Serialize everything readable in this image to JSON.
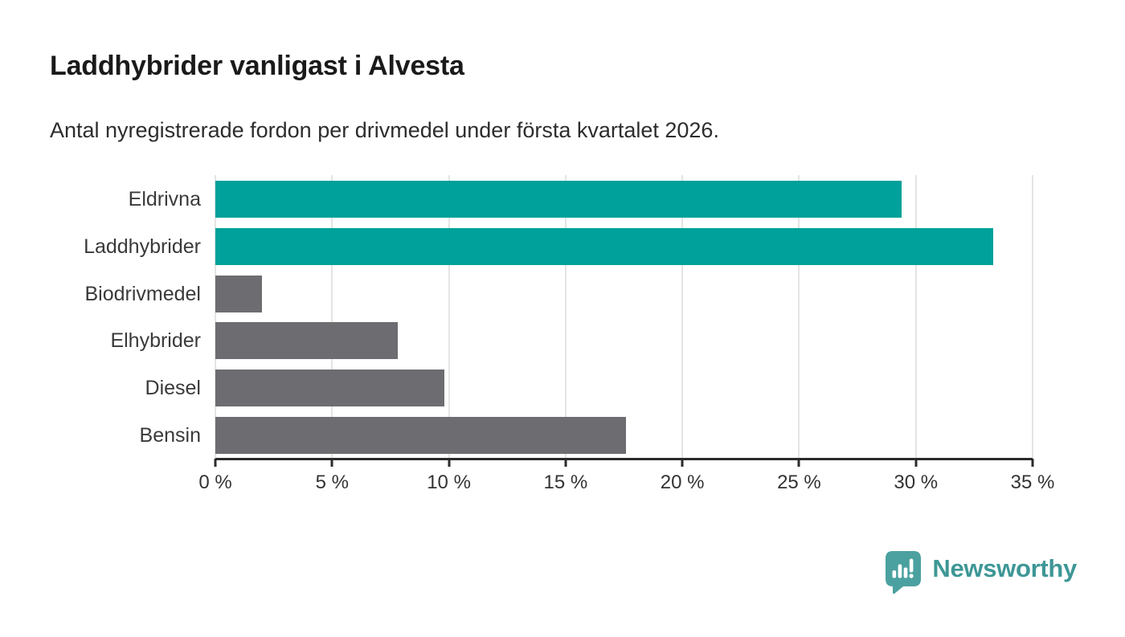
{
  "header": {
    "title": "Laddhybrider vanligast i Alvesta",
    "subtitle": "Antal nyregistrerade fordon per drivmedel under första kvartalet 2026."
  },
  "chart_data": {
    "type": "bar",
    "orientation": "horizontal",
    "title": "Laddhybrider vanligast i Alvesta",
    "subtitle": "Antal nyregistrerade fordon per drivmedel under första kvartalet 2026.",
    "categories": [
      "Eldrivna",
      "Laddhybrider",
      "Biodrivmedel",
      "Elhybrider",
      "Diesel",
      "Bensin"
    ],
    "values": [
      29.4,
      33.3,
      2.0,
      7.8,
      9.8,
      17.6
    ],
    "unit": "%",
    "bar_colors": [
      "#00a19a",
      "#00a19a",
      "#6d6d71",
      "#6d6d71",
      "#6d6d71",
      "#6d6d71"
    ],
    "highlight_color": "#00a19a",
    "default_color": "#6d6d71",
    "xlabel": "",
    "ylabel": "",
    "xlim": [
      0,
      35
    ],
    "x_ticks": [
      0,
      5,
      10,
      15,
      20,
      25,
      30,
      35
    ],
    "x_tick_labels": [
      "0 %",
      "5 %",
      "10 %",
      "15 %",
      "20 %",
      "25 %",
      "30 %",
      "35 %"
    ],
    "grid": true,
    "legend": false
  },
  "footer": {
    "brand_name": "Newsworthy",
    "brand_text_color": "#3e9796",
    "logo_color": "#4ba1a0"
  }
}
